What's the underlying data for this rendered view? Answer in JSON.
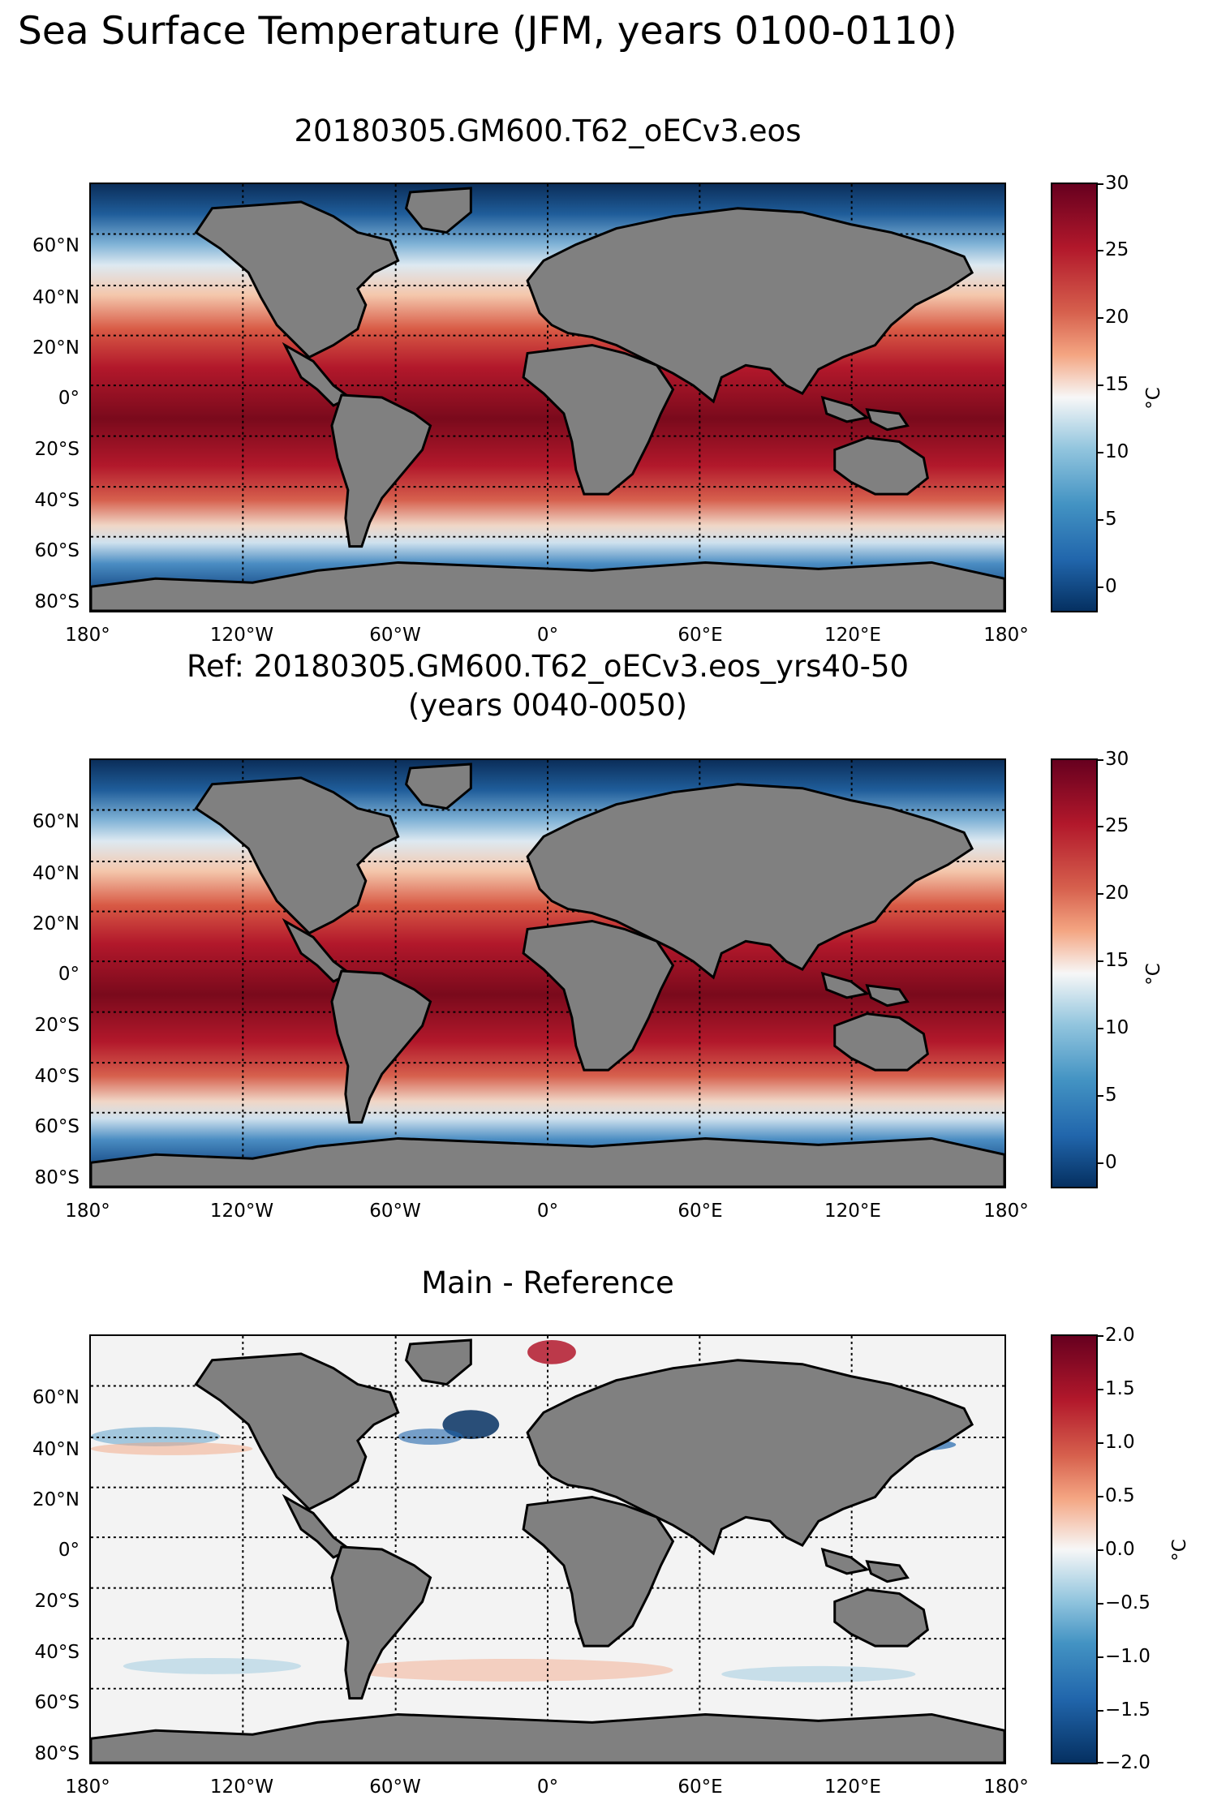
{
  "figure": {
    "suptitle": "Sea Surface Temperature (JFM, years 0100-0110)"
  },
  "panels": [
    {
      "title": "20180305.GM600.T62_oECv3.eos",
      "colorbar": {
        "unit": "°C",
        "ticks": [
          "30",
          "25",
          "20",
          "15",
          "10",
          "5",
          "0"
        ],
        "range": [
          -2,
          30
        ],
        "colormap": "RdBu_r"
      }
    },
    {
      "title": "Ref: 20180305.GM600.T62_oECv3.eos_yrs40-50",
      "subtitle": "(years 0040-0050)",
      "colorbar": {
        "unit": "°C",
        "ticks": [
          "30",
          "25",
          "20",
          "15",
          "10",
          "5",
          "0"
        ],
        "range": [
          -2,
          30
        ],
        "colormap": "RdBu_r"
      }
    },
    {
      "title": "Main - Reference",
      "colorbar": {
        "unit": "°C",
        "ticks": [
          "2.0",
          "1.5",
          "1.0",
          "0.5",
          "0.0",
          "−0.5",
          "−1.0",
          "−1.5",
          "−2.0"
        ],
        "range": [
          -2,
          2
        ],
        "colormap": "RdBu_r"
      }
    }
  ],
  "axes": {
    "lat_labels": [
      "60°N",
      "40°N",
      "20°N",
      "0°",
      "20°S",
      "40°S",
      "60°S",
      "80°S"
    ],
    "lon_labels": [
      "180°",
      "120°W",
      "60°W",
      "0°",
      "60°E",
      "120°E",
      "180°"
    ]
  },
  "colors": {
    "land": "#808080",
    "coastline": "#000000",
    "warm": "#7a0a1c",
    "cold": "#0c3b6e",
    "neutral": "#f4f4f4"
  }
}
